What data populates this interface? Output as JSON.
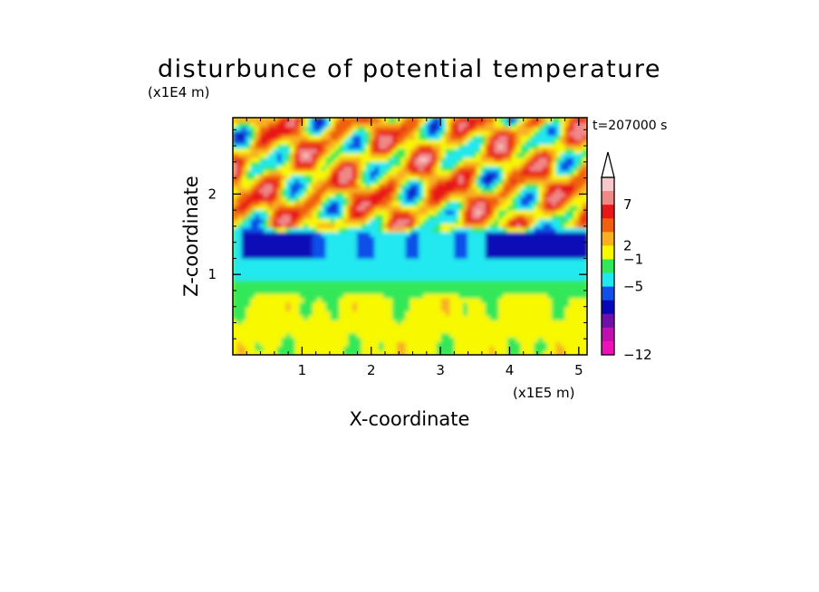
{
  "chart_data": {
    "type": "heatmap",
    "title": "disturbunce of potential temperature",
    "xlabel": "X-coordinate",
    "ylabel": "Z-coordinate",
    "x_unit": "(x1E5 m)",
    "y_unit": "(x1E4 m)",
    "time_label": "t=207000 s",
    "xlim": [
      0,
      5.12
    ],
    "ylim": [
      0,
      2.95
    ],
    "x_ticks": [
      "1",
      "2",
      "3",
      "4",
      "5"
    ],
    "x_tick_values": [
      1,
      2,
      3,
      4,
      5
    ],
    "y_ticks": [
      "1",
      "2"
    ],
    "y_tick_values": [
      1,
      2
    ],
    "colorbar": {
      "tick_labels": [
        "7",
        "2",
        "−1",
        "−5",
        "−12"
      ],
      "tick_values": [
        7,
        2,
        -1,
        -5,
        -12
      ],
      "colors_top_to_bottom": [
        "#f8c8c8",
        "#f08888",
        "#e81818",
        "#f06010",
        "#f8b020",
        "#f8f800",
        "#30e858",
        "#20e8f0",
        "#1050e8",
        "#0808b8",
        "#7010a8",
        "#c010b0",
        "#f010b8"
      ],
      "extend_top": true
    },
    "bands": [
      {
        "z_range": [
          0,
          0.7
        ],
        "value": 1,
        "description": "mostly weak positive"
      },
      {
        "z_range": [
          0.7,
          0.95
        ],
        "value": 0,
        "description": "green transition"
      },
      {
        "z_range": [
          0.95,
          1.25
        ],
        "value": -1.5,
        "description": "cyan negative layer"
      },
      {
        "z_range": [
          1.25,
          1.45
        ],
        "value": -4,
        "description": "blue strips"
      },
      {
        "z_range": [
          1.5,
          2.95
        ],
        "value": 2.5,
        "description": "oscillating wave field"
      }
    ]
  }
}
